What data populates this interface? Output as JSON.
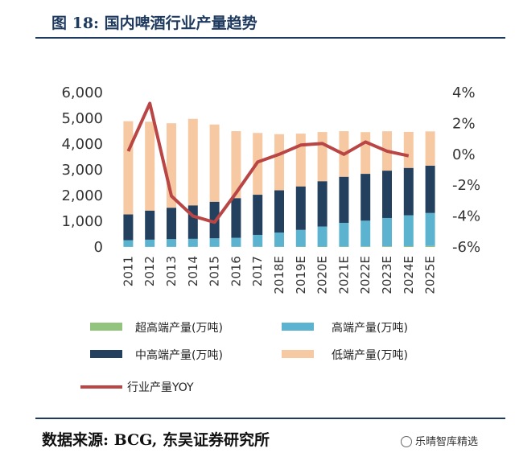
{
  "header": {
    "title": "图 18:  国内啤酒行业产量趋势"
  },
  "footer": {
    "source": "数据来源:  BCG,  东吴证券研究所",
    "watermark": "乐晴智库精选"
  },
  "colors": {
    "super_high": "#93c47d",
    "high": "#5bb3cf",
    "mid_high": "#23415f",
    "low": "#f6c9a3",
    "yoy": "#b94545",
    "title": "#1f3a5f"
  },
  "chart_data": {
    "type": "bar",
    "stacked": true,
    "categories": [
      "2011",
      "2012",
      "2013",
      "2014",
      "2015",
      "2016",
      "2017",
      "2018E",
      "2019E",
      "2020E",
      "2021E",
      "2022E",
      "2023E",
      "2024E",
      "2025E"
    ],
    "series": [
      {
        "name": "超高端产量(万吨)",
        "color": "#93c47d",
        "axis": "left",
        "values": [
          5,
          5,
          6,
          7,
          8,
          9,
          10,
          12,
          14,
          16,
          18,
          22,
          26,
          32,
          40
        ]
      },
      {
        "name": "高端产量(万吨)",
        "color": "#5bb3cf",
        "axis": "left",
        "values": [
          260,
          280,
          300,
          310,
          330,
          350,
          460,
          550,
          650,
          780,
          920,
          1000,
          1100,
          1200,
          1280
        ]
      },
      {
        "name": "中高端产量(万吨)",
        "color": "#23415f",
        "axis": "left",
        "values": [
          1000,
          1130,
          1220,
          1300,
          1420,
          1540,
          1560,
          1640,
          1690,
          1760,
          1790,
          1820,
          1840,
          1840,
          1840
        ]
      },
      {
        "name": "低端产量(万吨)",
        "color": "#f6c9a3",
        "axis": "left",
        "values": [
          3620,
          3450,
          3280,
          3360,
          3000,
          2600,
          2400,
          2180,
          2050,
          1910,
          1770,
          1620,
          1530,
          1400,
          1330
        ]
      },
      {
        "name": "行业产量YOY",
        "type": "line",
        "color": "#b94545",
        "axis": "right",
        "values": [
          0.2,
          3.3,
          -2.7,
          -4.0,
          -4.4,
          -2.5,
          -0.5,
          0.0,
          0.6,
          0.7,
          0.0,
          0.8,
          0.2,
          -0.1,
          null
        ]
      }
    ],
    "left_axis": {
      "ylim": [
        0,
        6000
      ],
      "ticks": [
        "0",
        "1,000",
        "2,000",
        "3,000",
        "4,000",
        "5,000",
        "6,000"
      ]
    },
    "right_axis": {
      "ylim": [
        -6,
        4
      ],
      "ticks": [
        "-6%",
        "-4%",
        "-2%",
        "0%",
        "2%",
        "4%"
      ]
    },
    "legend": {
      "position": "bottom",
      "columns": 2
    },
    "grid": false
  }
}
